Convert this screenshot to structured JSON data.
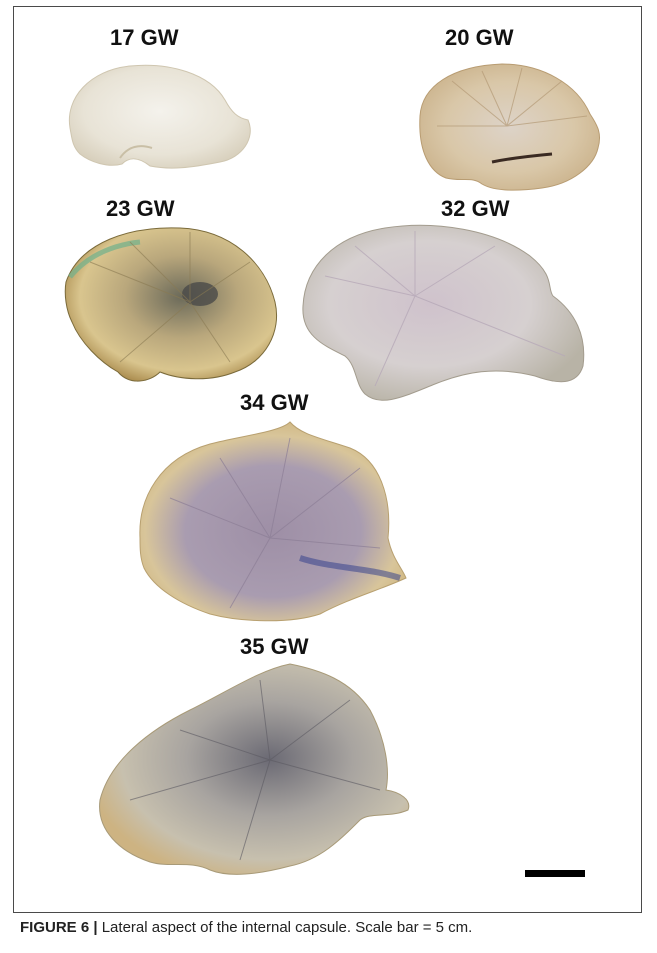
{
  "figure": {
    "panels": [
      {
        "label": "17 GW"
      },
      {
        "label": "20 GW"
      },
      {
        "label": "23 GW"
      },
      {
        "label": "32 GW"
      },
      {
        "label": "34 GW"
      },
      {
        "label": "35 GW"
      }
    ],
    "caption": {
      "figure_number": "FIGURE 6 |",
      "text": " Lateral aspect of the internal capsule. Scale bar = 5 cm."
    }
  }
}
